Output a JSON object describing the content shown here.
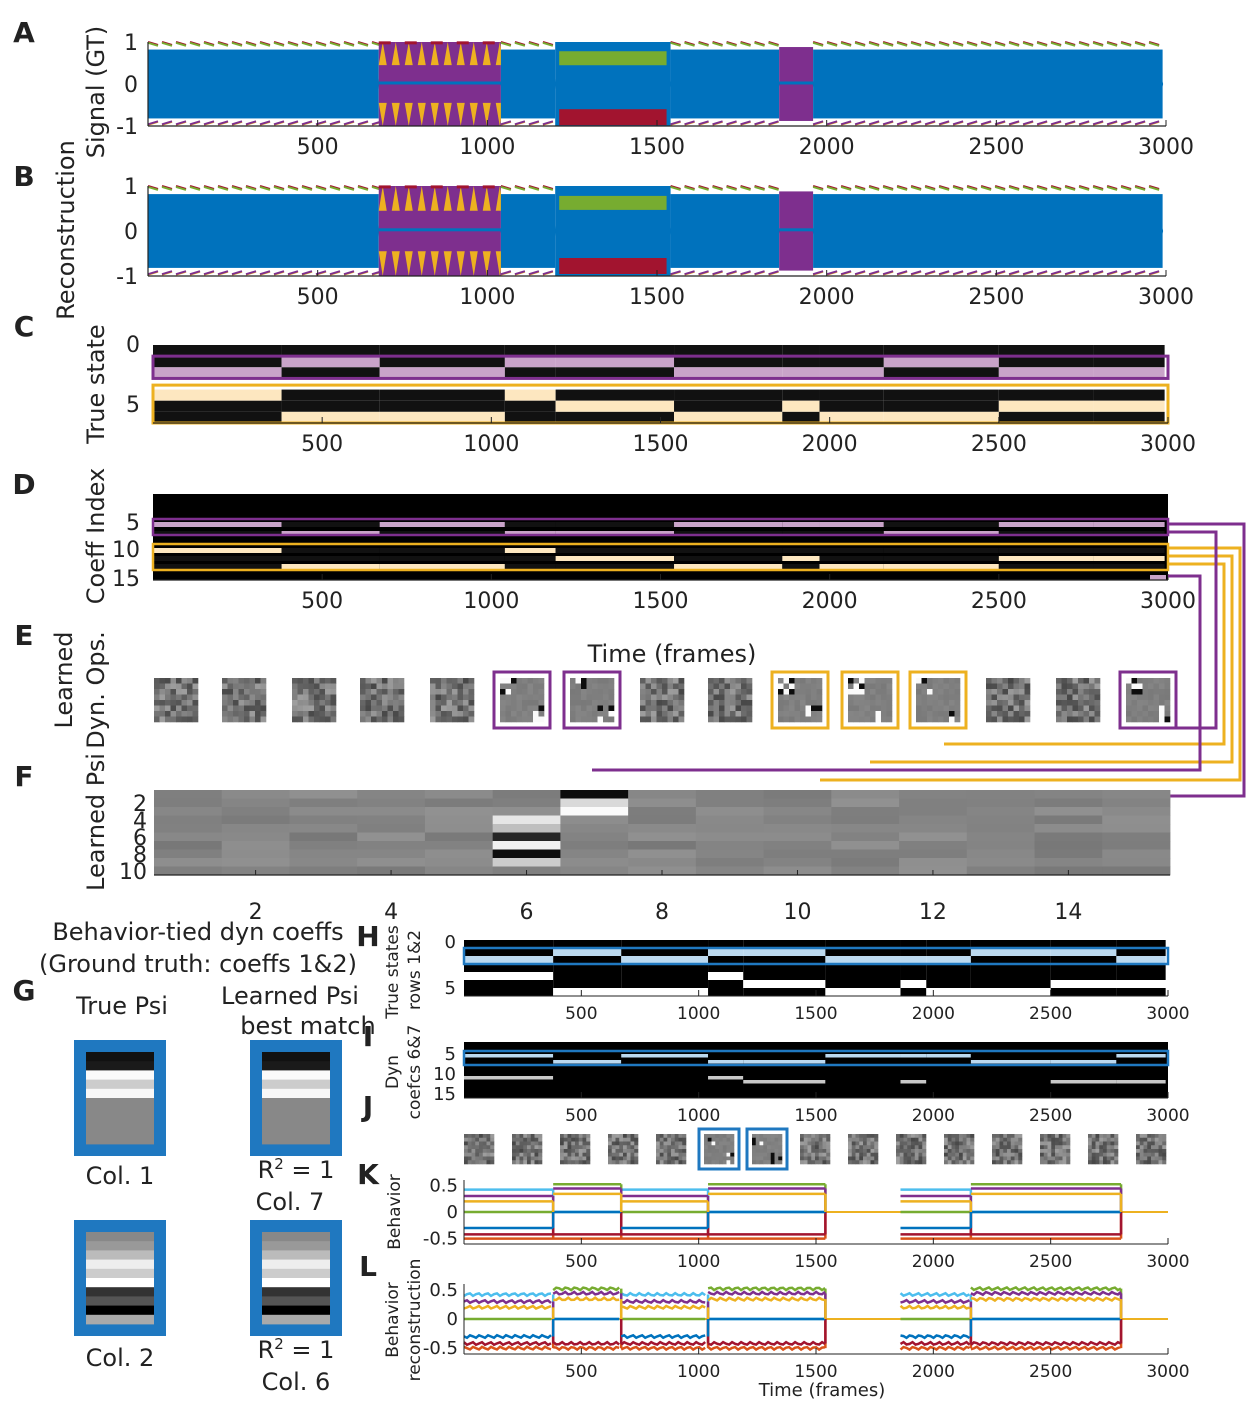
{
  "chart_data": [
    {
      "panel": "A",
      "type": "line",
      "ylabel": "Signal (GT)",
      "xlim": [
        0,
        3000
      ],
      "ylim": [
        -1,
        1
      ],
      "xticks": [
        500,
        1000,
        1500,
        2000,
        2500,
        3000
      ],
      "yticks": [
        1,
        0,
        -1
      ],
      "segments": [
        {
          "x": [
            0,
            680
          ],
          "mode": "osc"
        },
        {
          "x": [
            680,
            1040
          ],
          "mode": "purple-yellow"
        },
        {
          "x": [
            1040,
            1200
          ],
          "mode": "osc"
        },
        {
          "x": [
            1200,
            1540
          ],
          "mode": "green-red"
        },
        {
          "x": [
            1540,
            1860
          ],
          "mode": "osc"
        },
        {
          "x": [
            1860,
            1960
          ],
          "mode": "purple-block"
        },
        {
          "x": [
            1960,
            2990
          ],
          "mode": "osc"
        }
      ]
    },
    {
      "panel": "B",
      "type": "line",
      "ylabel": "Reconstruction",
      "xlim": [
        0,
        3000
      ],
      "ylim": [
        -1,
        1
      ],
      "xticks": [
        500,
        1000,
        1500,
        2000,
        2500,
        3000
      ],
      "yticks": [
        1,
        0,
        -1
      ]
    },
    {
      "panel": "C",
      "type": "heatmap",
      "ylabel": "True state",
      "xlim": [
        0,
        3000
      ],
      "xticks": [
        500,
        1000,
        1500,
        2000,
        2500,
        3000
      ],
      "yticks": [
        0,
        5
      ],
      "nrows": 7,
      "boundaries": [
        380,
        670,
        1040,
        1190,
        1540,
        1860,
        1970,
        2160,
        2500,
        2780,
        2990
      ]
    },
    {
      "panel": "D",
      "type": "heatmap",
      "ylabel": "Coeff Index",
      "xlim": [
        0,
        3000
      ],
      "xticks": [
        500,
        1000,
        1500,
        2000,
        2500,
        3000
      ],
      "yticks": [
        5,
        10,
        15
      ],
      "xlabel": "Time (frames)"
    },
    {
      "panel": "E",
      "type": "heatmap",
      "ylabel": "Learned Dyn. Ops.",
      "count": 15,
      "highlighted_purple": [
        6,
        7,
        15
      ],
      "highlighted_orange": [
        10,
        11,
        12
      ]
    },
    {
      "panel": "F",
      "type": "heatmap",
      "ylabel": "Learned Psi",
      "xticks": [
        2,
        4,
        6,
        8,
        10,
        12,
        14
      ],
      "yticks": [
        2,
        4,
        6,
        8,
        10
      ]
    },
    {
      "panel": "G",
      "type": "heatmap",
      "title": [
        "Behavior-tied dyn coeffs",
        "(Ground truth: coeffs 1&2)"
      ],
      "col_true": "True Psi",
      "col_learned": [
        "Learned Psi",
        "best match"
      ],
      "pairs": [
        {
          "true_label": "Col. 1",
          "r2": "= 1",
          "learned_label": "Col. 7"
        },
        {
          "true_label": "Col. 2",
          "r2": "= 1",
          "learned_label": "Col. 6"
        }
      ]
    },
    {
      "panel": "H",
      "type": "heatmap",
      "ylabel": [
        "True states",
        "rows 1&2"
      ],
      "xlim": [
        0,
        3000
      ],
      "xticks": [
        500,
        1000,
        1500,
        2000,
        2500,
        3000
      ],
      "yticks": [
        0,
        5
      ]
    },
    {
      "panel": "I",
      "type": "heatmap",
      "ylabel": [
        "Dyn",
        "coefcs 6&7"
      ],
      "xlim": [
        0,
        3000
      ],
      "xticks": [
        500,
        1000,
        1500,
        2000,
        2500,
        3000
      ],
      "yticks": [
        5,
        10,
        15
      ]
    },
    {
      "panel": "J",
      "type": "heatmap",
      "count": 15,
      "highlighted_blue": [
        6,
        7
      ]
    },
    {
      "panel": "K",
      "type": "line",
      "ylabel": "Behavior",
      "xlim": [
        0,
        3000
      ],
      "ylim": [
        -0.6,
        0.6
      ],
      "xticks": [
        500,
        1000,
        1500,
        2000,
        2500,
        3000
      ],
      "yticks": [
        0.5,
        0,
        -0.5
      ],
      "intervals": [
        [
          0,
          380
        ],
        [
          380,
          670
        ],
        [
          670,
          1040
        ],
        [
          1040,
          1540
        ],
        [
          1860,
          2160
        ],
        [
          2160,
          2800
        ]
      ],
      "series": [
        {
          "color": "#4dbeee",
          "values": [
            0.42,
            0,
            0.42,
            0,
            0.42,
            0
          ]
        },
        {
          "color": "#77ac30",
          "values": [
            0,
            0.52,
            0,
            0.52,
            0,
            0.52
          ]
        },
        {
          "color": "#7e2f8e",
          "values": [
            0.3,
            0.44,
            0.3,
            0.44,
            0.3,
            0.44
          ]
        },
        {
          "color": "#d95319",
          "values": [
            -0.5,
            -0.5,
            -0.5,
            -0.5,
            -0.5,
            -0.5
          ]
        },
        {
          "color": "#a2142f",
          "values": [
            -0.42,
            -0.42,
            -0.42,
            -0.42,
            -0.42,
            -0.42
          ]
        },
        {
          "color": "#0072bd",
          "values": [
            -0.3,
            0,
            -0.3,
            0,
            -0.3,
            0
          ]
        },
        {
          "color": "#edb120",
          "values": [
            0.2,
            0.34,
            0.2,
            0.34,
            0.2,
            0.34
          ]
        }
      ]
    },
    {
      "panel": "L",
      "type": "line",
      "ylabel": [
        "Behavior",
        "reconstruction"
      ],
      "xlabel": "Time (frames)",
      "xlim": [
        0,
        3000
      ],
      "ylim": [
        -0.6,
        0.6
      ],
      "xticks": [
        500,
        1000,
        1500,
        2000,
        2500,
        3000
      ],
      "yticks": [
        0.5,
        0,
        -0.5
      ]
    }
  ],
  "panel_letters": [
    "A",
    "B",
    "C",
    "D",
    "E",
    "F",
    "G",
    "H",
    "I",
    "J",
    "K",
    "L"
  ],
  "colors": {
    "blue": "#0072bd",
    "red": "#a2142f",
    "yellow": "#edb120",
    "purple": "#7e2f8e",
    "green": "#77ac30",
    "orange": "#d95319",
    "lightblue": "#4dbeee",
    "hl_purple": "#7e2f8e",
    "hl_orange": "#edb120",
    "hl_blue": "#1f78c0"
  }
}
